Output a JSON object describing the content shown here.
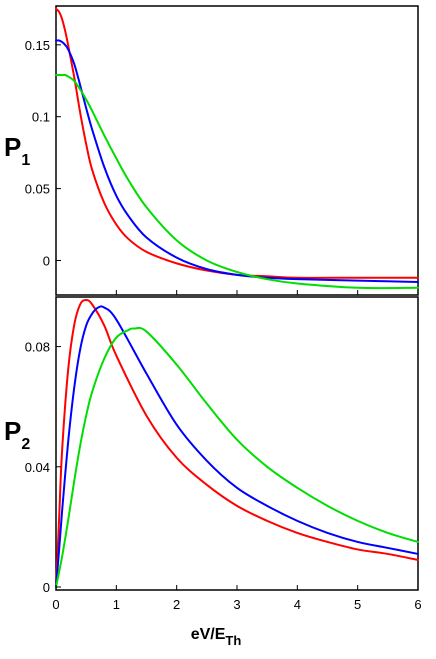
{
  "chart_data": [
    {
      "type": "line",
      "ylabel": "P",
      "ylabel_sub": "1",
      "xlabel": "",
      "xlim": [
        0,
        6
      ],
      "ylim": [
        -0.024,
        0.177
      ],
      "xticks": [
        0,
        1,
        2,
        3,
        4,
        5,
        6
      ],
      "xtick_labels": [
        "",
        "",
        "",
        "",
        "",
        "",
        ""
      ],
      "yticks": [
        0,
        0.05,
        0.1,
        0.15
      ],
      "ytick_labels": [
        "0",
        "0.05",
        "0.1",
        "0.15"
      ],
      "grid": false,
      "legend": false,
      "series": [
        {
          "color": "#ff0000",
          "x": [
            0,
            0.05,
            0.1,
            0.15,
            0.2,
            0.3,
            0.4,
            0.5,
            0.6,
            0.8,
            1.0,
            1.2,
            1.5,
            2.0,
            2.5,
            3.0,
            3.5,
            4.0,
            5.0,
            6.0
          ],
          "y": [
            0.175,
            0.173,
            0.168,
            0.16,
            0.15,
            0.128,
            0.103,
            0.081,
            0.063,
            0.04,
            0.025,
            0.015,
            0.006,
            -0.002,
            -0.007,
            -0.01,
            -0.011,
            -0.012,
            -0.012,
            -0.012
          ]
        },
        {
          "color": "#0000ff",
          "x": [
            0,
            0.05,
            0.1,
            0.15,
            0.2,
            0.3,
            0.4,
            0.5,
            0.6,
            0.8,
            1.0,
            1.2,
            1.5,
            2.0,
            2.5,
            3.0,
            3.5,
            4.0,
            5.0,
            6.0
          ],
          "y": [
            0.153,
            0.153,
            0.152,
            0.15,
            0.147,
            0.137,
            0.122,
            0.106,
            0.091,
            0.065,
            0.045,
            0.031,
            0.016,
            0.002,
            -0.006,
            -0.01,
            -0.012,
            -0.013,
            -0.014,
            -0.015
          ]
        },
        {
          "color": "#00dd00",
          "x": [
            0,
            0.05,
            0.1,
            0.15,
            0.2,
            0.3,
            0.4,
            0.5,
            0.6,
            0.8,
            1.0,
            1.2,
            1.5,
            2.0,
            2.5,
            3.0,
            3.5,
            4.0,
            5.0,
            6.0
          ],
          "y": [
            0.129,
            0.129,
            0.129,
            0.129,
            0.128,
            0.125,
            0.119,
            0.112,
            0.104,
            0.087,
            0.071,
            0.056,
            0.037,
            0.014,
            0.0,
            -0.008,
            -0.013,
            -0.016,
            -0.019,
            -0.019
          ]
        }
      ]
    },
    {
      "type": "line",
      "ylabel": "P",
      "ylabel_sub": "2",
      "xlabel": "eV/E",
      "xlabel_sub": "Th",
      "xlim": [
        0,
        6
      ],
      "ylim": [
        -0.001,
        0.0965
      ],
      "xticks": [
        0,
        1,
        2,
        3,
        4,
        5,
        6
      ],
      "xtick_labels": [
        "0",
        "1",
        "2",
        "3",
        "4",
        "5",
        "6"
      ],
      "yticks": [
        0,
        0.04,
        0.08
      ],
      "ytick_labels": [
        "0",
        "0.04",
        "0.08"
      ],
      "grid": false,
      "legend": false,
      "series": [
        {
          "color": "#ff0000",
          "x": [
            0,
            0.05,
            0.1,
            0.2,
            0.3,
            0.4,
            0.5,
            0.6,
            0.8,
            1.0,
            1.5,
            2.0,
            2.5,
            3.0,
            3.5,
            4.0,
            4.5,
            5.0,
            5.5,
            6.0
          ],
          "y": [
            0.0,
            0.022,
            0.045,
            0.072,
            0.087,
            0.094,
            0.0955,
            0.094,
            0.087,
            0.077,
            0.057,
            0.043,
            0.034,
            0.027,
            0.022,
            0.018,
            0.015,
            0.0125,
            0.011,
            0.009
          ]
        },
        {
          "color": "#0000ff",
          "x": [
            0,
            0.05,
            0.1,
            0.2,
            0.3,
            0.4,
            0.5,
            0.6,
            0.7,
            0.8,
            1.0,
            1.5,
            2.0,
            2.5,
            3.0,
            3.5,
            4.0,
            4.5,
            5.0,
            5.5,
            6.0
          ],
          "y": [
            0.0,
            0.012,
            0.025,
            0.048,
            0.066,
            0.079,
            0.087,
            0.091,
            0.093,
            0.093,
            0.089,
            0.071,
            0.054,
            0.042,
            0.033,
            0.027,
            0.022,
            0.018,
            0.015,
            0.013,
            0.011
          ]
        },
        {
          "color": "#00dd00",
          "x": [
            0,
            0.1,
            0.2,
            0.3,
            0.4,
            0.5,
            0.6,
            0.8,
            1.0,
            1.2,
            1.3,
            1.5,
            2.0,
            2.5,
            3.0,
            3.5,
            4.0,
            4.5,
            5.0,
            5.5,
            6.0
          ],
          "y": [
            0.0,
            0.01,
            0.022,
            0.035,
            0.047,
            0.057,
            0.065,
            0.076,
            0.083,
            0.0855,
            0.086,
            0.085,
            0.074,
            0.061,
            0.049,
            0.04,
            0.033,
            0.027,
            0.022,
            0.018,
            0.015
          ]
        }
      ]
    }
  ]
}
